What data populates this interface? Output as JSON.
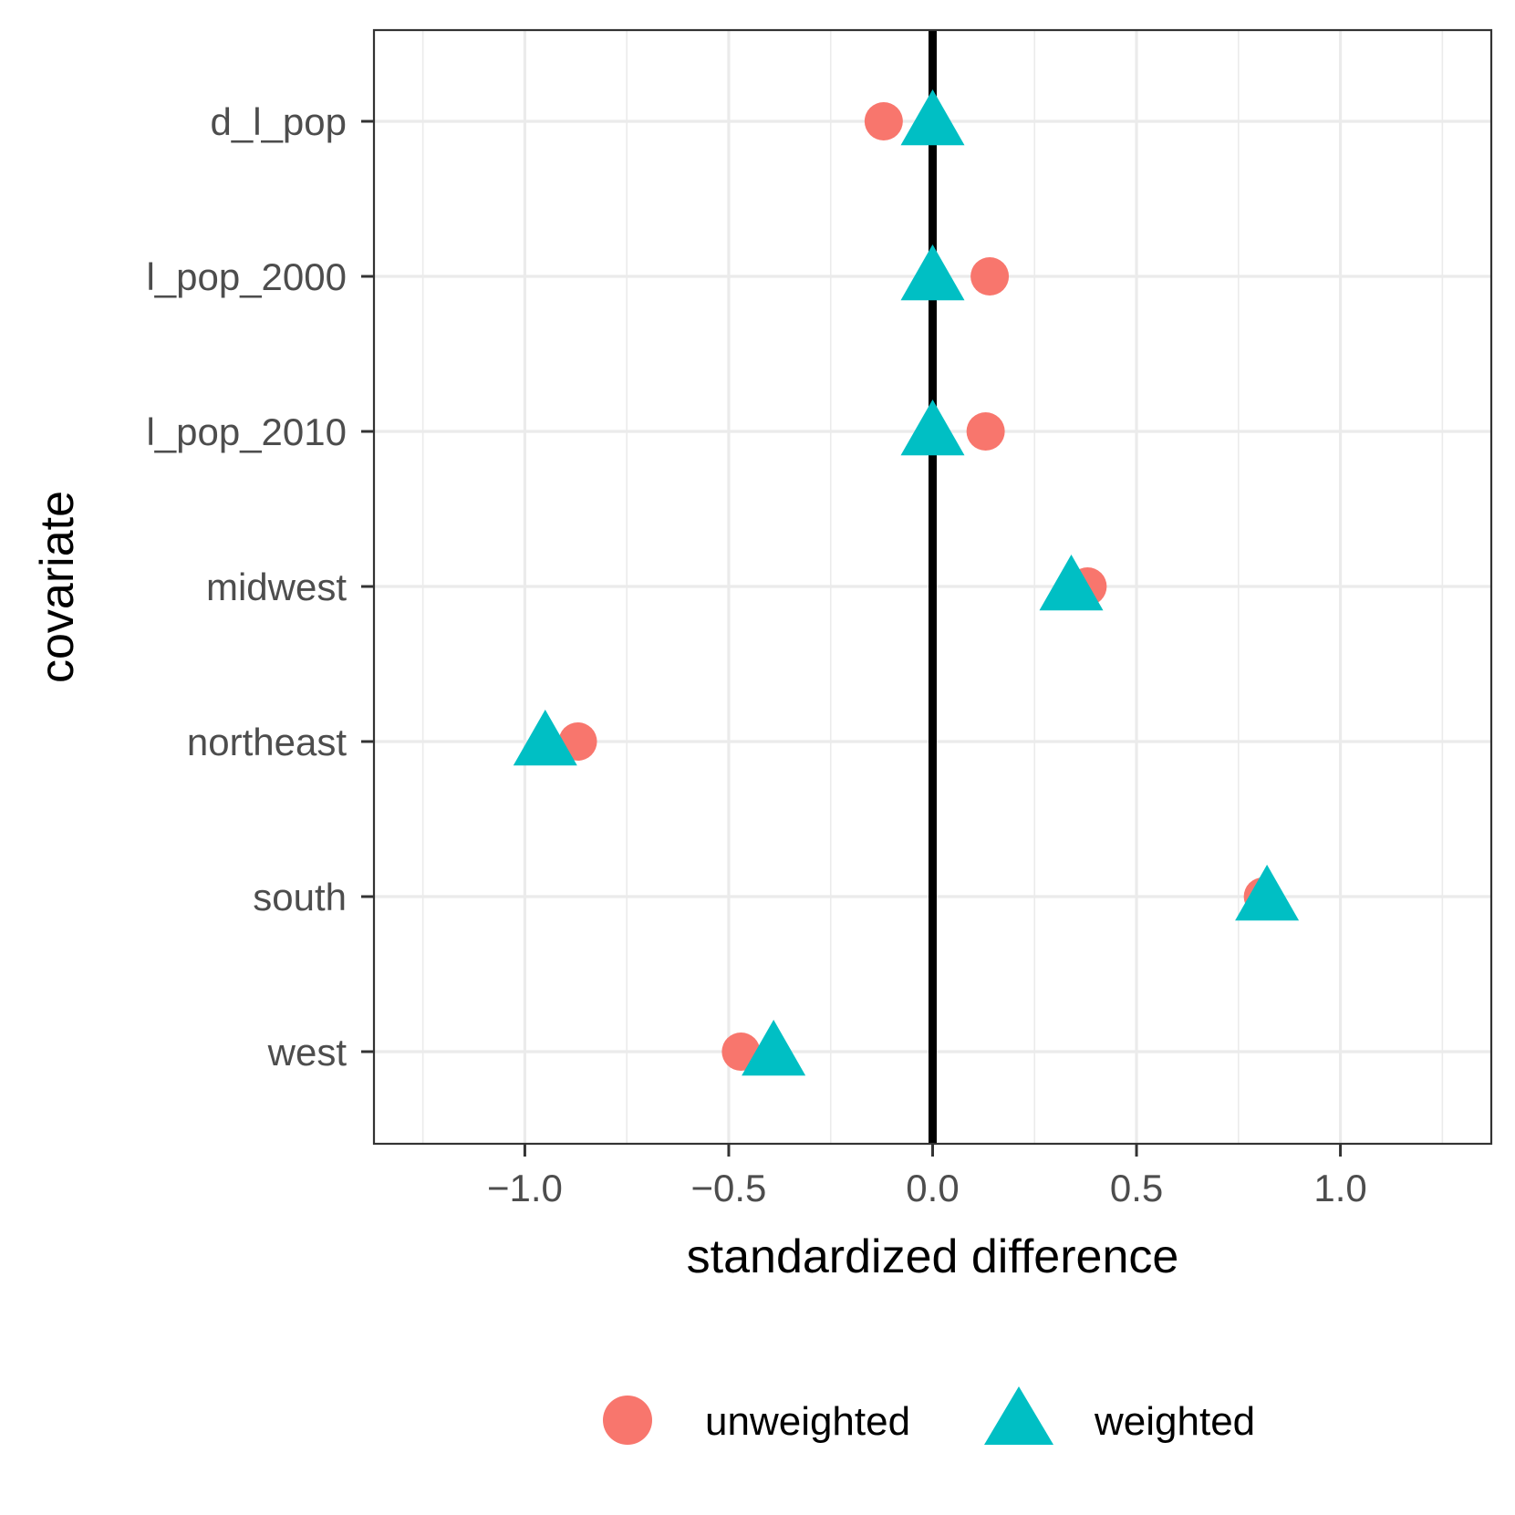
{
  "chart_data": {
    "type": "scatter",
    "xlabel": "standardized difference",
    "ylabel": "covariate",
    "xlim": [
      -1.37,
      1.37
    ],
    "x_ticks": [
      -1.0,
      -0.5,
      0.0,
      0.5,
      1.0
    ],
    "x_tick_labels": [
      "−1.0",
      "−0.5",
      "0.0",
      "0.5",
      "1.0"
    ],
    "x_minor_ticks": [
      -1.25,
      -0.75,
      -0.25,
      0.25,
      0.75,
      1.25
    ],
    "categories": [
      "d_l_pop",
      "l_pop_2000",
      "l_pop_2010",
      "midwest",
      "northeast",
      "south",
      "west"
    ],
    "reference_line_x": 0,
    "grid": true,
    "legend_position": "bottom",
    "series": [
      {
        "name": "unweighted",
        "marker": "circle",
        "color": "#F8766D",
        "values": [
          -0.12,
          0.14,
          0.13,
          0.38,
          -0.87,
          0.81,
          -0.47
        ]
      },
      {
        "name": "weighted",
        "marker": "triangle",
        "color": "#00BFC4",
        "values": [
          0.0,
          0.0,
          0.0,
          0.34,
          -0.95,
          0.82,
          -0.39
        ]
      }
    ]
  }
}
